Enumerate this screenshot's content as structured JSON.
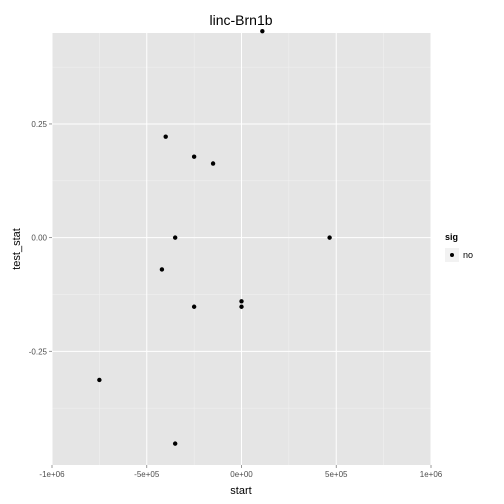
{
  "chart_data": {
    "type": "scatter",
    "title": "linc-Brn1b",
    "xlabel": "start",
    "ylabel": "test_stat",
    "xlim": [
      -1000000,
      1000000
    ],
    "ylim": [
      -0.5,
      0.45
    ],
    "x_ticks": [
      -1000000,
      -500000,
      0,
      500000,
      1000000
    ],
    "x_tick_labels": [
      "-1e+06",
      "-5e+05",
      "0e+00",
      "5e+05",
      "1e+06"
    ],
    "y_ticks": [
      -0.25,
      0,
      0.25
    ],
    "y_tick_labels": [
      "-0.25",
      "0.00",
      "0.25"
    ],
    "grid": true,
    "legend": {
      "title": "sig",
      "position": "right",
      "entries": [
        "no"
      ]
    },
    "colors": {
      "panel": "#e5e5e5",
      "grid_major": "#ffffff",
      "grid_minor": "#f2f2f2",
      "point": "#000000"
    },
    "series": [
      {
        "name": "no",
        "points": [
          {
            "x": 110000,
            "y": 0.454
          },
          {
            "x": -400000,
            "y": 0.222
          },
          {
            "x": -250000,
            "y": 0.178
          },
          {
            "x": -150000,
            "y": 0.163
          },
          {
            "x": -350000,
            "y": 0.0
          },
          {
            "x": 465000,
            "y": 0.0
          },
          {
            "x": -420000,
            "y": -0.07
          },
          {
            "x": 0,
            "y": -0.14
          },
          {
            "x": -250000,
            "y": -0.152
          },
          {
            "x": 0,
            "y": -0.152
          },
          {
            "x": -750000,
            "y": -0.313
          },
          {
            "x": -350000,
            "y": -0.453
          }
        ]
      }
    ]
  }
}
